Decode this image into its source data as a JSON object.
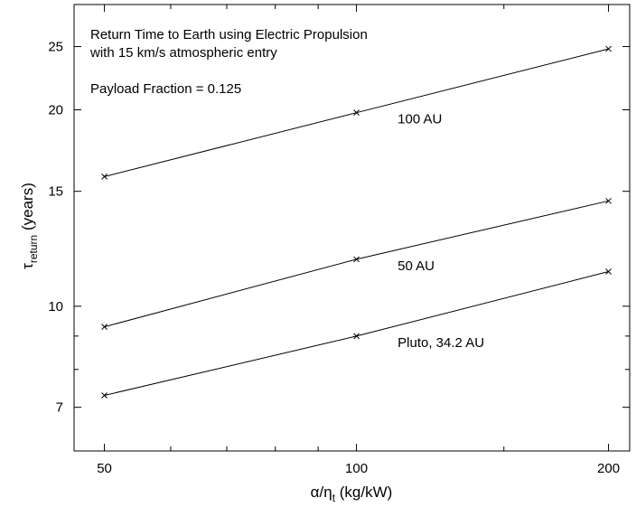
{
  "chart_data": {
    "type": "line",
    "title_lines": [
      "Return Time to Earth using Electric Propulsion",
      "with 15 km/s atmospheric entry"
    ],
    "subtitle": "Payload Fraction = 0.125",
    "xlabel": {
      "main": "α/η",
      "sub": "t",
      "unit": " (kg/kW)"
    },
    "ylabel": {
      "main": "τ",
      "sub": "return",
      "unit": " (years)"
    },
    "x_scale": "log",
    "y_scale": "log",
    "xlim": [
      46,
      212
    ],
    "ylim": [
      6.0,
      29.0
    ],
    "x_ticks": [
      50,
      100,
      200
    ],
    "y_ticks": [
      7,
      10,
      15,
      20,
      25
    ],
    "grid": false,
    "marker": "x",
    "series": [
      {
        "name": "100 AU",
        "x": [
          50,
          100,
          200
        ],
        "y": [
          15.8,
          19.8,
          24.8
        ]
      },
      {
        "name": "50 AU",
        "x": [
          50,
          100,
          200
        ],
        "y": [
          9.3,
          11.8,
          14.5
        ]
      },
      {
        "name": "Pluto, 34.2 AU",
        "x": [
          50,
          100,
          200
        ],
        "y": [
          7.3,
          9.0,
          11.3
        ]
      }
    ],
    "series_label_anchor_x": [
      112,
      112,
      112
    ]
  }
}
